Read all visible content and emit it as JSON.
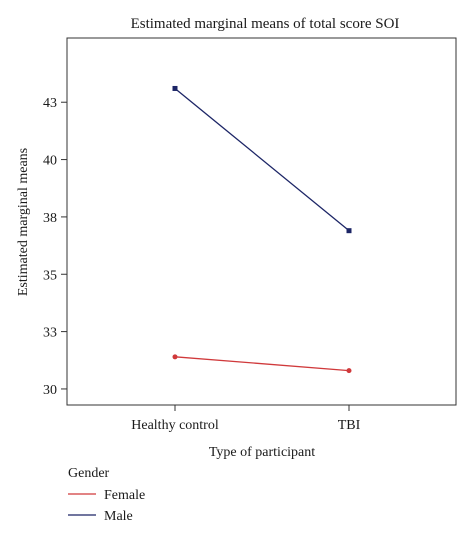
{
  "chart_data": {
    "type": "line",
    "title": "Estimated marginal means of total score SOI",
    "xlabel": "Type of participant",
    "ylabel": "Estimated marginal means",
    "categories": [
      "Healthy control",
      "TBI"
    ],
    "ylim": [
      29.3,
      45.3
    ],
    "yticks": [
      30,
      32.5,
      35,
      37.5,
      40,
      42.5
    ],
    "ytick_labels": [
      "30",
      "33",
      "35",
      "38",
      "40",
      "43"
    ],
    "grid": false,
    "legend": {
      "title": "Gender",
      "placement": "bottom-left"
    },
    "series": [
      {
        "name": "Female",
        "values": [
          31.4,
          30.8
        ],
        "color": "#d0393b",
        "marker": "circle"
      },
      {
        "name": "Male",
        "values": [
          43.1,
          36.9
        ],
        "color": "#1c2566",
        "marker": "square"
      }
    ]
  }
}
